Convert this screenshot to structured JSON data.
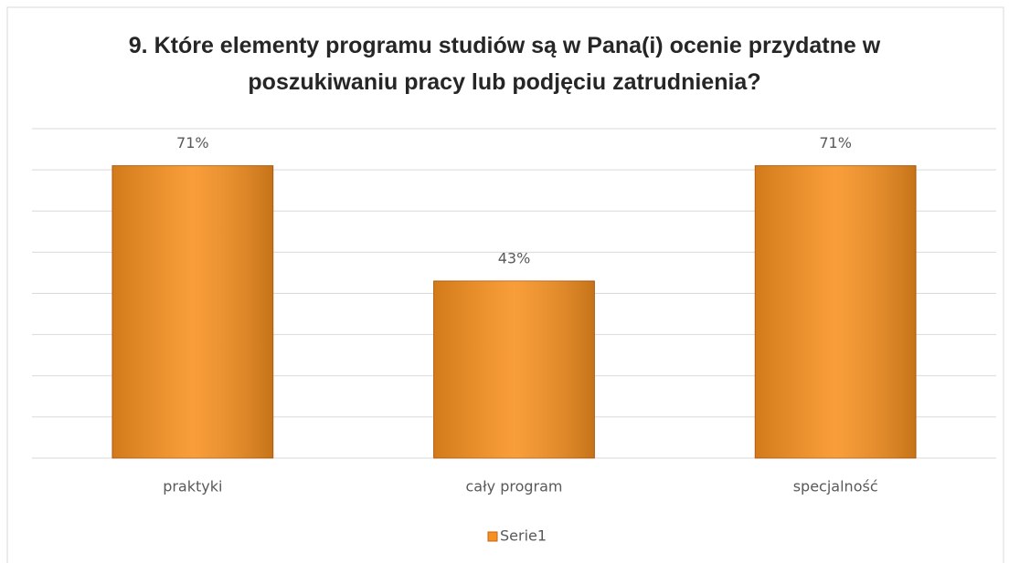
{
  "chart_data": {
    "type": "bar",
    "title": "9. Które elementy programu studiów są w Pana(i) ocenie przydatne w poszukiwaniu pracy lub podjęciu zatrudnienia?",
    "categories": [
      "praktyki",
      "cały program",
      "specjalność"
    ],
    "series": [
      {
        "name": "Serie1",
        "color": "#f7901e",
        "values": [
          71,
          43,
          71
        ],
        "value_labels": [
          "71%",
          "43%",
          "71%"
        ]
      }
    ],
    "ylim": [
      0,
      80
    ],
    "yticks": [
      0,
      10,
      20,
      30,
      40,
      50,
      60,
      70,
      80
    ],
    "grid": true,
    "legend": "bottom"
  }
}
